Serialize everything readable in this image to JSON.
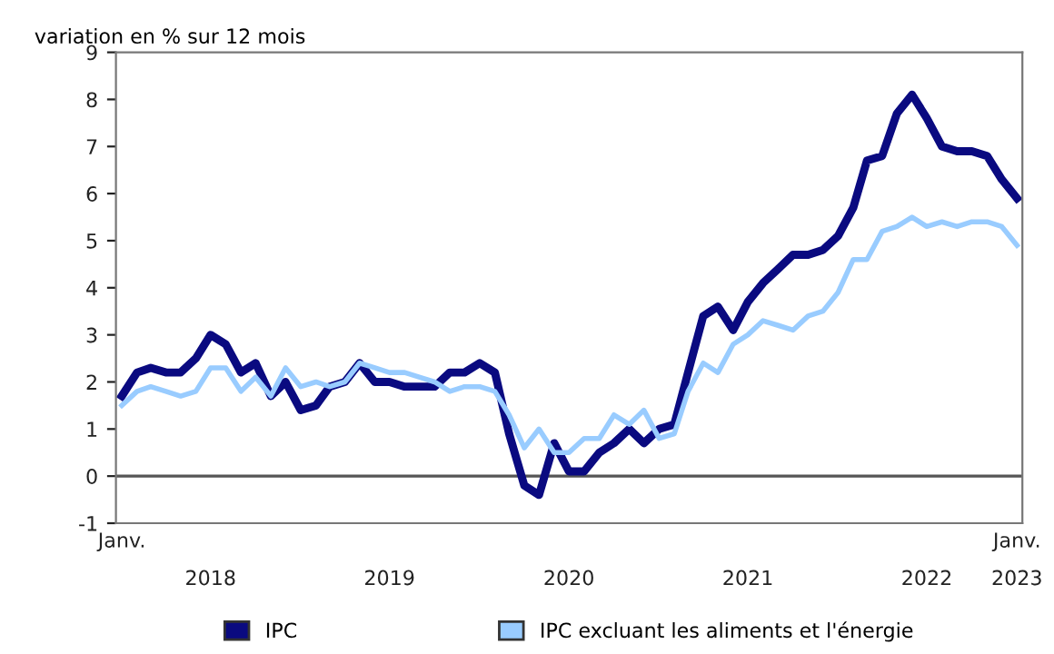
{
  "chart_data": {
    "type": "line",
    "ylabel": "variation en % sur 12 mois",
    "x": [
      "2018-01",
      "2018-02",
      "2018-03",
      "2018-04",
      "2018-05",
      "2018-06",
      "2018-07",
      "2018-08",
      "2018-09",
      "2018-10",
      "2018-11",
      "2018-12",
      "2019-01",
      "2019-02",
      "2019-03",
      "2019-04",
      "2019-05",
      "2019-06",
      "2019-07",
      "2019-08",
      "2019-09",
      "2019-10",
      "2019-11",
      "2019-12",
      "2020-01",
      "2020-02",
      "2020-03",
      "2020-04",
      "2020-05",
      "2020-06",
      "2020-07",
      "2020-08",
      "2020-09",
      "2020-10",
      "2020-11",
      "2020-12",
      "2021-01",
      "2021-02",
      "2021-03",
      "2021-04",
      "2021-05",
      "2021-06",
      "2021-07",
      "2021-08",
      "2021-09",
      "2021-10",
      "2021-11",
      "2021-12",
      "2022-01",
      "2022-02",
      "2022-03",
      "2022-04",
      "2022-05",
      "2022-06",
      "2022-07",
      "2022-08",
      "2022-09",
      "2022-10",
      "2022-11",
      "2022-12",
      "2023-01"
    ],
    "series": [
      {
        "name": "IPC",
        "color": "#0a0a80",
        "values": [
          1.7,
          2.2,
          2.3,
          2.2,
          2.2,
          2.5,
          3.0,
          2.8,
          2.2,
          2.4,
          1.7,
          2.0,
          1.4,
          1.5,
          1.9,
          2.0,
          2.4,
          2.0,
          2.0,
          1.9,
          1.9,
          1.9,
          2.2,
          2.2,
          2.4,
          2.2,
          0.9,
          -0.2,
          -0.4,
          0.7,
          0.1,
          0.1,
          0.5,
          0.7,
          1.0,
          0.7,
          1.0,
          1.1,
          2.2,
          3.4,
          3.6,
          3.1,
          3.7,
          4.1,
          4.4,
          4.7,
          4.7,
          4.8,
          5.1,
          5.7,
          6.7,
          6.8,
          7.7,
          8.1,
          7.6,
          7.0,
          6.9,
          6.9,
          6.8,
          6.3,
          5.9
        ]
      },
      {
        "name": "IPC excluant les aliments et l'énergie",
        "color": "#99ccff",
        "values": [
          1.5,
          1.8,
          1.9,
          1.8,
          1.7,
          1.8,
          2.3,
          2.3,
          1.8,
          2.1,
          1.7,
          2.3,
          1.9,
          2.0,
          1.9,
          2.0,
          2.4,
          2.3,
          2.2,
          2.2,
          2.1,
          2.0,
          1.8,
          1.9,
          1.9,
          1.8,
          1.3,
          0.6,
          1.0,
          0.5,
          0.5,
          0.8,
          0.8,
          1.3,
          1.1,
          1.4,
          0.8,
          0.9,
          1.8,
          2.4,
          2.2,
          2.8,
          3.0,
          3.3,
          3.2,
          3.1,
          3.4,
          3.5,
          3.9,
          4.6,
          4.6,
          5.2,
          5.3,
          5.5,
          5.3,
          5.4,
          5.3,
          5.4,
          5.4,
          5.3,
          4.9
        ]
      }
    ],
    "ylim": [
      -1,
      9
    ],
    "yticks": [
      -1,
      0,
      1,
      2,
      3,
      4,
      5,
      6,
      7,
      8,
      9
    ],
    "xlim": [
      "2017-12-20",
      "2023-01-12"
    ],
    "xticks": [
      {
        "value": "2018-01",
        "label": "Janv."
      },
      {
        "value": "2023-01",
        "label": "Janv."
      }
    ],
    "x2lim": [
      "2017-12-20",
      "2023-01-12"
    ],
    "x2ticks": [
      {
        "value": "2018-07",
        "label": "2018"
      },
      {
        "value": "2019-07",
        "label": "2019"
      },
      {
        "value": "2020-07",
        "label": "2020"
      },
      {
        "value": "2021-07",
        "label": "2021"
      },
      {
        "value": "2022-07",
        "label": "2022"
      },
      {
        "value": "2023-01",
        "label": "2023"
      }
    ],
    "ref_lines": [
      {
        "axis": "y",
        "value": 0,
        "color": "#555555"
      }
    ],
    "grid": false,
    "legend": "bottom",
    "marker": "none",
    "line_style": "solid"
  }
}
